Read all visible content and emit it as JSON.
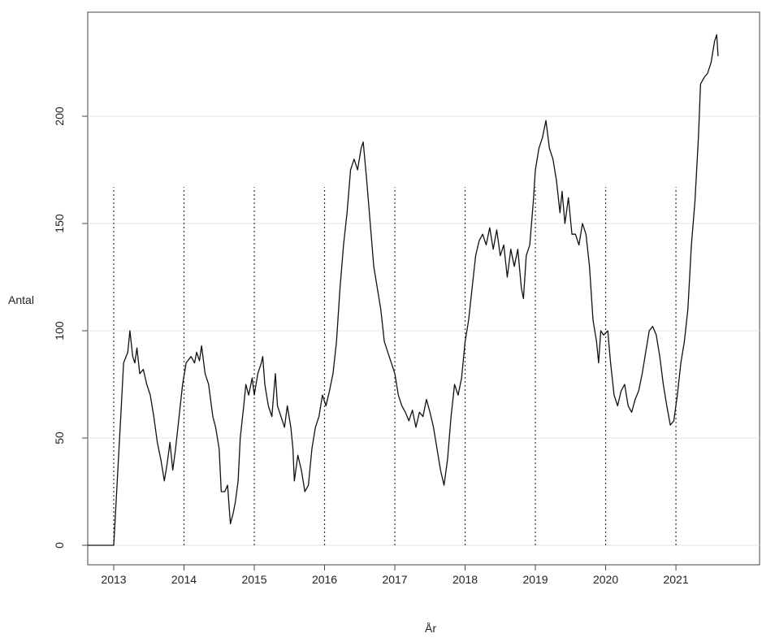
{
  "chart_data": {
    "type": "line",
    "xlabel": "År",
    "ylabel": "Antal",
    "xlim": [
      2012.63,
      2022.19
    ],
    "ylim": [
      -9.1,
      248.5
    ],
    "xticks": [
      2013,
      2014,
      2015,
      2016,
      2017,
      2018,
      2019,
      2020,
      2021
    ],
    "yticks": [
      0,
      50,
      100,
      150,
      200
    ],
    "grid": true,
    "color": "#111111",
    "vlines": {
      "x": [
        2013,
        2014,
        2015,
        2016,
        2017,
        2018,
        2019,
        2020,
        2021
      ],
      "ymax": 167
    },
    "x": [
      2012.63,
      2013.0,
      2013.05,
      2013.1,
      2013.14,
      2013.2,
      2013.23,
      2013.27,
      2013.3,
      2013.33,
      2013.37,
      2013.42,
      2013.47,
      2013.52,
      2013.57,
      2013.62,
      2013.67,
      2013.72,
      2013.76,
      2013.8,
      2013.84,
      2013.88,
      2013.93,
      2013.98,
      2014.03,
      2014.1,
      2014.15,
      2014.18,
      2014.22,
      2014.25,
      2014.3,
      2014.35,
      2014.41,
      2014.45,
      2014.5,
      2014.53,
      2014.58,
      2014.62,
      2014.66,
      2014.7,
      2014.73,
      2014.77,
      2014.8,
      2014.85,
      2014.88,
      2014.92,
      2014.97,
      2015.0,
      2015.05,
      2015.1,
      2015.12,
      2015.15,
      2015.2,
      2015.25,
      2015.3,
      2015.33,
      2015.38,
      2015.43,
      2015.47,
      2015.52,
      2015.55,
      2015.57,
      2015.62,
      2015.67,
      2015.72,
      2015.77,
      2015.82,
      2015.87,
      2015.92,
      2015.97,
      2016.02,
      2016.07,
      2016.12,
      2016.17,
      2016.22,
      2016.27,
      2016.32,
      2016.37,
      2016.42,
      2016.47,
      2016.52,
      2016.55,
      2016.6,
      2016.65,
      2016.7,
      2016.75,
      2016.8,
      2016.85,
      2016.9,
      2016.95,
      2017.0,
      2017.05,
      2017.1,
      2017.15,
      2017.2,
      2017.25,
      2017.3,
      2017.35,
      2017.4,
      2017.45,
      2017.5,
      2017.55,
      2017.6,
      2017.65,
      2017.7,
      2017.75,
      2017.8,
      2017.85,
      2017.9,
      2017.95,
      2018.0,
      2018.05,
      2018.1,
      2018.15,
      2018.2,
      2018.25,
      2018.3,
      2018.35,
      2018.4,
      2018.45,
      2018.5,
      2018.55,
      2018.6,
      2018.65,
      2018.7,
      2018.75,
      2018.8,
      2018.83,
      2018.87,
      2018.92,
      2018.97,
      2019.0,
      2019.05,
      2019.1,
      2019.15,
      2019.2,
      2019.25,
      2019.3,
      2019.35,
      2019.38,
      2019.42,
      2019.47,
      2019.52,
      2019.57,
      2019.62,
      2019.67,
      2019.72,
      2019.77,
      2019.82,
      2019.87,
      2019.9,
      2019.93,
      2019.97,
      2020.03,
      2020.07,
      2020.12,
      2020.17,
      2020.22,
      2020.27,
      2020.32,
      2020.37,
      2020.42,
      2020.47,
      2020.52,
      2020.57,
      2020.62,
      2020.67,
      2020.72,
      2020.77,
      2020.82,
      2020.87,
      2020.92,
      2020.97,
      2021.02,
      2021.07,
      2021.12,
      2021.17,
      2021.22,
      2021.27,
      2021.32,
      2021.35,
      2021.4,
      2021.45,
      2021.5,
      2021.55,
      2021.58,
      2021.6
    ],
    "values": [
      0,
      0,
      30,
      60,
      85,
      90,
      100,
      88,
      85,
      92,
      80,
      82,
      75,
      70,
      60,
      48,
      40,
      30,
      38,
      48,
      35,
      45,
      60,
      75,
      85,
      88,
      85,
      90,
      86,
      93,
      80,
      75,
      60,
      55,
      45,
      25,
      25,
      28,
      10,
      15,
      20,
      30,
      50,
      65,
      75,
      70,
      78,
      70,
      80,
      85,
      88,
      75,
      65,
      60,
      80,
      65,
      60,
      55,
      65,
      55,
      45,
      30,
      42,
      35,
      25,
      28,
      45,
      55,
      60,
      70,
      65,
      72,
      80,
      95,
      120,
      140,
      155,
      175,
      180,
      175,
      185,
      188,
      170,
      150,
      130,
      120,
      110,
      95,
      90,
      85,
      80,
      70,
      65,
      62,
      58,
      63,
      55,
      62,
      60,
      68,
      62,
      55,
      45,
      35,
      28,
      40,
      60,
      75,
      70,
      78,
      95,
      105,
      120,
      135,
      142,
      145,
      140,
      148,
      138,
      147,
      135,
      140,
      125,
      138,
      130,
      138,
      120,
      115,
      135,
      140,
      160,
      175,
      185,
      190,
      198,
      185,
      180,
      170,
      155,
      165,
      150,
      162,
      145,
      145,
      140,
      150,
      145,
      130,
      105,
      95,
      85,
      100,
      98,
      100,
      85,
      70,
      65,
      72,
      75,
      65,
      62,
      68,
      72,
      80,
      90,
      100,
      102,
      98,
      88,
      75,
      65,
      56,
      58,
      70,
      85,
      95,
      110,
      140,
      160,
      190,
      215,
      218,
      220,
      225,
      235,
      238,
      228
    ]
  }
}
